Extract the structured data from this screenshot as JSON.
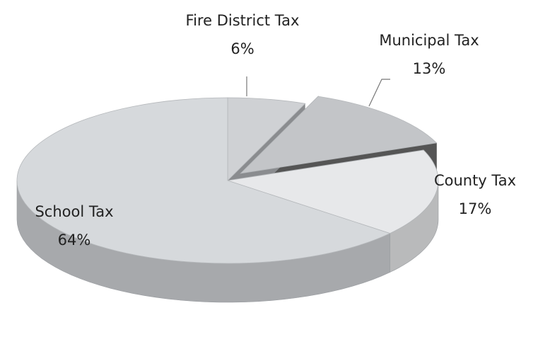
{
  "chart_data": {
    "type": "pie",
    "categories": [
      "Fire District Tax",
      "Municipal Tax",
      "County Tax",
      "School Tax"
    ],
    "values": [
      6,
      13,
      17,
      64
    ],
    "value_labels": [
      "6%",
      "13%",
      "17%",
      "64%"
    ],
    "colors": [
      "#cfd1d4",
      "#c3c5c8",
      "#e7e8ea",
      "#d6d9dc"
    ]
  }
}
